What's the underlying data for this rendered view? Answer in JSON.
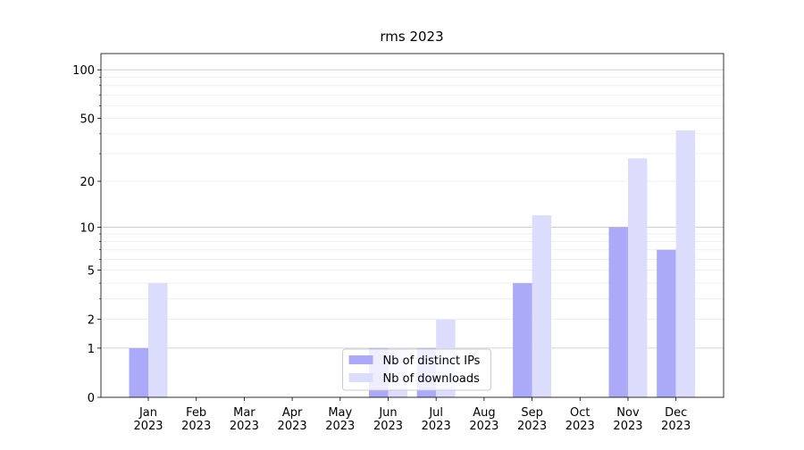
{
  "chart_data": {
    "type": "bar",
    "title": "rms 2023",
    "categories": [
      "Jan\n2023",
      "Feb\n2023",
      "Mar\n2023",
      "Apr\n2023",
      "May\n2023",
      "Jun\n2023",
      "Jul\n2023",
      "Aug\n2023",
      "Sep\n2023",
      "Oct\n2023",
      "Nov\n2023",
      "Dec\n2023"
    ],
    "series": [
      {
        "name": "Nb of distinct IPs",
        "color": "#aaaaf8",
        "values": [
          1,
          0,
          0,
          0,
          0,
          1,
          1,
          0,
          4,
          0,
          10,
          7
        ]
      },
      {
        "name": "Nb of downloads",
        "color": "#dcdcfc",
        "values": [
          4,
          0,
          0,
          0,
          0,
          1,
          2,
          0,
          12,
          0,
          28,
          42
        ]
      }
    ],
    "yscale": "log1p",
    "ylim": [
      0,
      126
    ],
    "yticks": [
      0,
      1,
      2,
      5,
      10,
      20,
      50,
      100
    ],
    "yminorticks": [
      3,
      4,
      6,
      7,
      8,
      9,
      30,
      40,
      60,
      70,
      80,
      90
    ],
    "grid": true,
    "legend": "lower center"
  }
}
